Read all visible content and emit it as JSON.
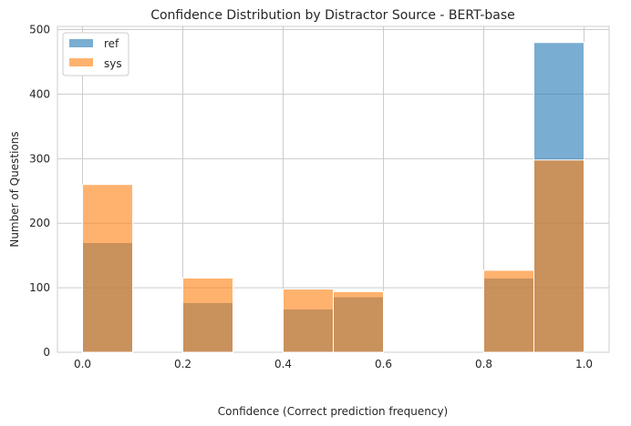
{
  "chart_data": {
    "type": "bar",
    "title": "Confidence Distribution by Distractor Source - BERT-base",
    "xlabel": "Confidence (Correct prediction frequency)",
    "ylabel": "Number of Questions",
    "xlim": [
      -0.05,
      1.05
    ],
    "ylim": [
      0,
      505
    ],
    "xticks": [
      "0.0",
      "0.2",
      "0.4",
      "0.6",
      "0.8",
      "1.0"
    ],
    "yticks": [
      "0",
      "100",
      "200",
      "300",
      "400",
      "500"
    ],
    "grid": true,
    "legend_position": "top-left",
    "bins": [
      [
        0.0,
        0.1
      ],
      [
        0.2,
        0.3
      ],
      [
        0.4,
        0.5
      ],
      [
        0.5,
        0.6
      ],
      [
        0.8,
        0.9
      ],
      [
        0.9,
        1.0
      ]
    ],
    "series": [
      {
        "name": "ref",
        "color": "#1f77b4",
        "values": [
          170,
          77,
          67,
          86,
          115,
          480
        ]
      },
      {
        "name": "sys",
        "color": "#ff7f0e",
        "values": [
          260,
          115,
          98,
          94,
          127,
          298
        ]
      }
    ]
  }
}
